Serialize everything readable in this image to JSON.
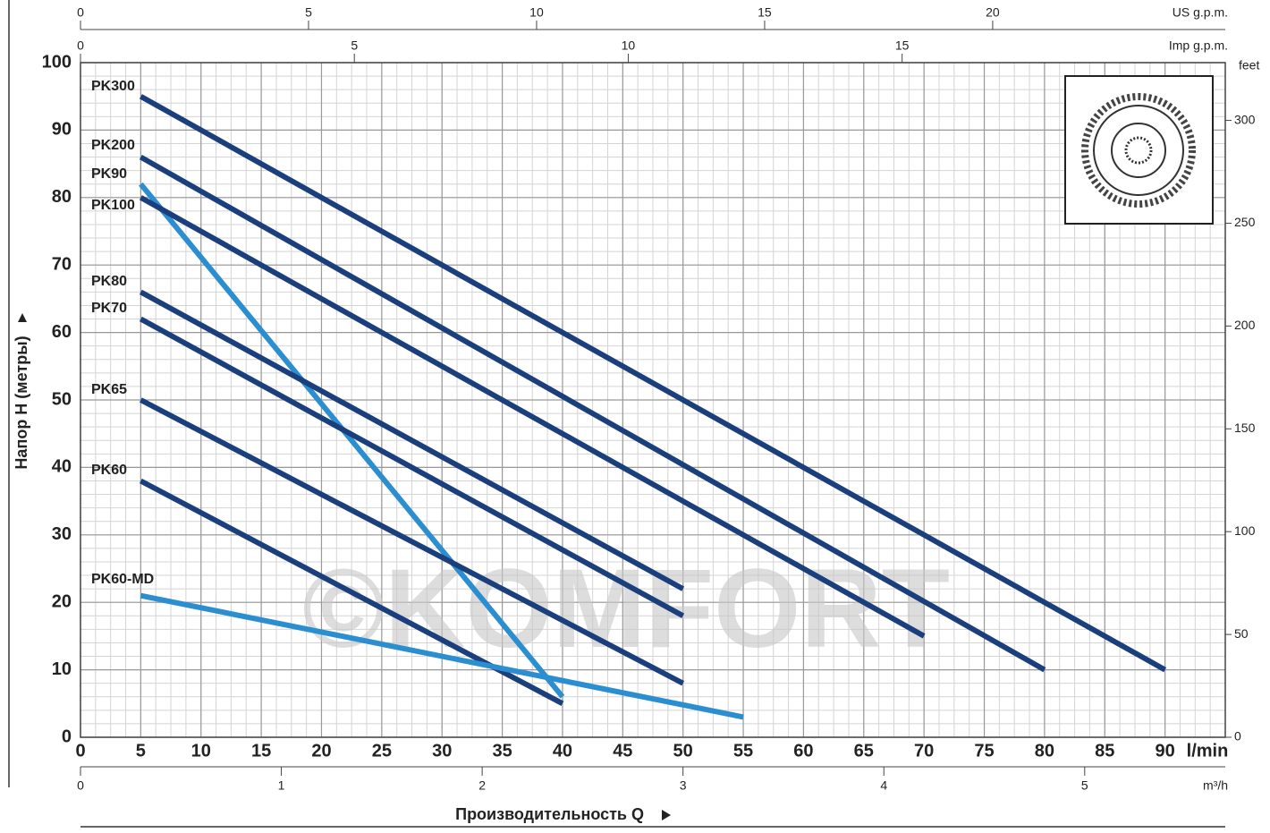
{
  "chart_data": {
    "type": "line",
    "xlabel": "Производительность Q",
    "ylabel": "Напор H (метры)",
    "x_unit": "l/min",
    "watermark": "©KOMFORT",
    "grid": true,
    "xlim": [
      0,
      95
    ],
    "xticks": [
      0,
      5,
      10,
      15,
      20,
      25,
      30,
      35,
      40,
      45,
      50,
      55,
      60,
      65,
      70,
      75,
      80,
      85,
      90
    ],
    "ylim": [
      0,
      100
    ],
    "yticks": [
      0,
      10,
      20,
      30,
      40,
      50,
      60,
      70,
      80,
      90,
      100
    ],
    "y2label": "feet",
    "y2lim": [
      0,
      328.1
    ],
    "y2ticks": [
      0,
      50,
      100,
      150,
      200,
      250,
      300
    ],
    "top_axes": [
      {
        "label": "US g.p.m.",
        "lim": [
          0,
          25.1
        ],
        "ticks": [
          0,
          5,
          10,
          15,
          20
        ]
      },
      {
        "label": "Imp g.p.m.",
        "lim": [
          0,
          20.9
        ],
        "ticks": [
          0,
          5,
          10,
          15
        ]
      }
    ],
    "bottom_axis": {
      "label": "m³/h",
      "lim": [
        0,
        5.7
      ],
      "ticks": [
        0,
        1,
        2,
        3,
        4,
        5
      ]
    },
    "series": [
      {
        "name": "PK300",
        "color": "#1b3f7c",
        "x": [
          5,
          90
        ],
        "values": [
          95,
          10
        ]
      },
      {
        "name": "PK200",
        "color": "#1b3f7c",
        "x": [
          5,
          80
        ],
        "values": [
          86,
          10
        ]
      },
      {
        "name": "PK90",
        "color": "#2b8ed0",
        "x": [
          5,
          40
        ],
        "values": [
          82,
          6
        ]
      },
      {
        "name": "PK100",
        "color": "#1b3f7c",
        "x": [
          5,
          70
        ],
        "values": [
          80,
          15
        ]
      },
      {
        "name": "PK80",
        "color": "#1b3f7c",
        "x": [
          5,
          50
        ],
        "values": [
          66,
          22
        ]
      },
      {
        "name": "PK70",
        "color": "#1b3f7c",
        "x": [
          5,
          50
        ],
        "values": [
          62,
          18
        ]
      },
      {
        "name": "PK65",
        "color": "#1b3f7c",
        "x": [
          5,
          50
        ],
        "values": [
          50,
          8
        ]
      },
      {
        "name": "PK60",
        "color": "#1b3f7c",
        "x": [
          5,
          40
        ],
        "values": [
          38,
          5
        ]
      },
      {
        "name": "PK60-MD",
        "color": "#2b8ed0",
        "x": [
          5,
          55
        ],
        "values": [
          21,
          3
        ]
      }
    ]
  }
}
